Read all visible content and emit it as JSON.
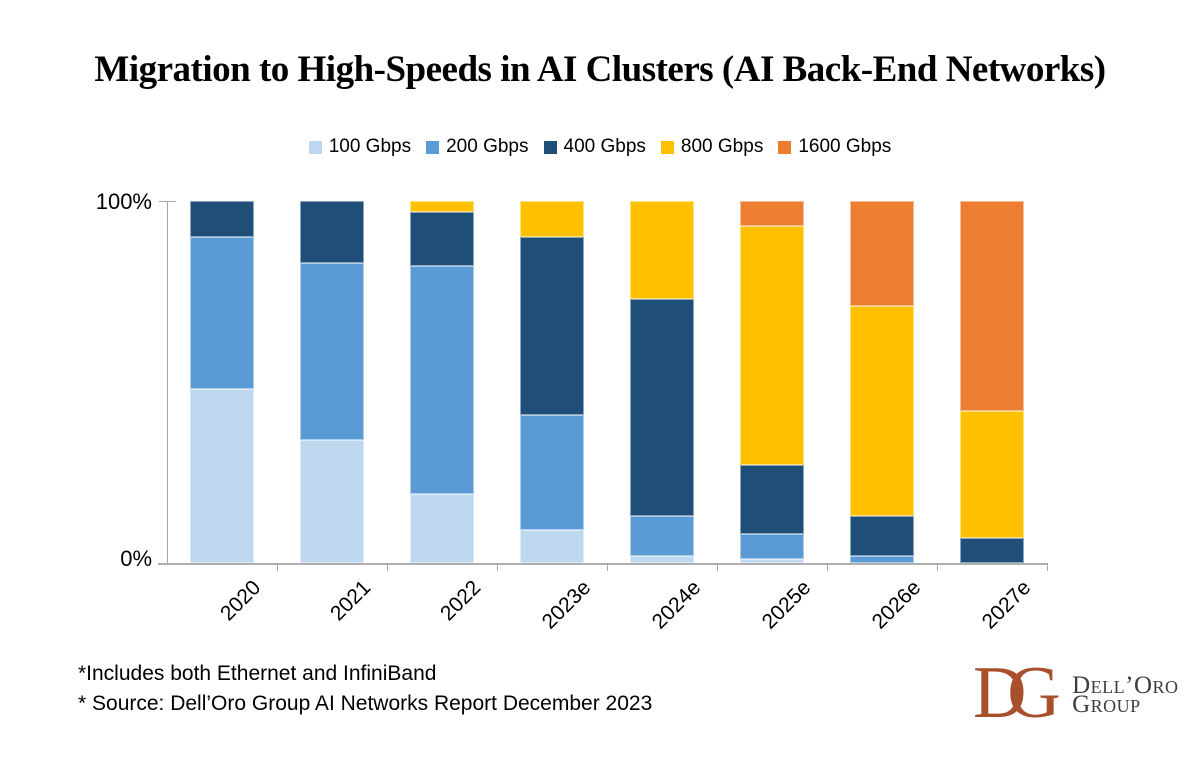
{
  "title": "Migration to High-Speeds in AI Clusters (AI Back-End Networks)",
  "chart_data": {
    "type": "bar",
    "stacked": true,
    "units": "% of ports/share",
    "title": "Migration to High-Speeds in AI Clusters (AI Back-End Networks)",
    "categories": [
      "2020",
      "2021",
      "2022",
      "2023e",
      "2024e",
      "2025e",
      "2026e",
      "2027e"
    ],
    "series": [
      {
        "name": "100 Gbps",
        "color": "#BDD7EE",
        "values": [
          48,
          34,
          19,
          9,
          2,
          1,
          0,
          0
        ]
      },
      {
        "name": "200 Gbps",
        "color": "#5B9BD5",
        "values": [
          42,
          49,
          63,
          32,
          11,
          7,
          2,
          0
        ]
      },
      {
        "name": "400 Gbps",
        "color": "#1F4E79",
        "values": [
          10,
          17,
          15,
          49,
          60,
          19,
          11,
          7
        ]
      },
      {
        "name": "800 Gbps",
        "color": "#FFC000",
        "values": [
          0,
          0,
          3,
          10,
          27,
          66,
          58,
          35
        ]
      },
      {
        "name": "1600 Gbps",
        "color": "#ED7D31",
        "values": [
          0,
          0,
          0,
          0,
          0,
          7,
          29,
          58
        ]
      }
    ],
    "ylim": [
      0,
      100
    ],
    "ytick_labels": [
      "100%",
      "0%"
    ],
    "legend_position": "top",
    "grid": false
  },
  "y_axis": {
    "top_label": "100%",
    "bottom_label": "0%"
  },
  "footnotes": [
    "*Includes both Ethernet and InfiniBand",
    "* Source: Dell’Oro Group AI Networks Report December 2023"
  ],
  "logo": {
    "monogram": "DG",
    "line1": "Dell’Oro",
    "line2": "Group",
    "monogram_color": "#A8502B"
  }
}
